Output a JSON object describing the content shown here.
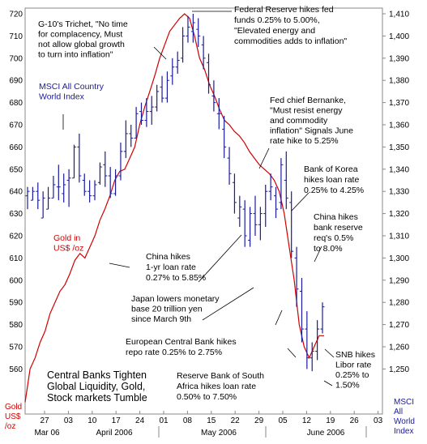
{
  "chart_data": {
    "type": "line",
    "left_axis": {
      "title": [
        "Gold",
        "US$",
        "/oz"
      ],
      "ticks": [
        "720",
        "710",
        "700",
        "690",
        "680",
        "670",
        "660",
        "650",
        "640",
        "630",
        "620",
        "610",
        "600",
        "590",
        "580",
        "570",
        "560"
      ],
      "ylim": [
        548,
        725
      ],
      "color": "#d00000"
    },
    "right_axis": {
      "title": [
        "MSCI",
        "All",
        "World",
        "Index"
      ],
      "ticks": [
        "1,410",
        "1,400",
        "1,390",
        "1,380",
        "1,370",
        "1,360",
        "1,350",
        "1,340",
        "1,330",
        "1,320",
        "1,310",
        "1,300",
        "1,290",
        "1,280",
        "1,270",
        "1,260",
        "1,250"
      ],
      "ylim": [
        1245.5,
        1412
      ],
      "color": "#1a1a9a"
    },
    "x_ticks": [
      "27",
      "03",
      "10",
      "17",
      "24",
      "01",
      "08",
      "15",
      "22",
      "29",
      "05",
      "12",
      "19",
      "26",
      "03"
    ],
    "month_labels": [
      "Mar 06",
      "April 2006",
      "May 2006",
      "June 2006"
    ],
    "series": [
      {
        "name": "Gold in US$ /oz",
        "type": "line",
        "values": [
          545,
          560,
          565,
          572,
          577,
          585,
          590,
          595,
          598,
          603,
          609,
          612,
          610,
          615,
          620,
          627,
          632,
          638,
          645,
          649,
          650,
          655,
          660,
          670,
          678,
          685,
          692,
          700,
          706,
          712,
          715,
          718,
          720,
          718,
          710,
          700,
          695,
          688,
          683,
          677,
          672,
          670,
          667,
          665,
          662,
          658,
          655,
          652,
          650,
          648,
          645,
          640,
          630,
          615,
          600,
          580,
          570,
          565,
          570,
          575,
          575
        ]
      },
      {
        "name": "MSCI All Country World Index",
        "type": "ohlc",
        "bars": [
          [
            1328,
            1332,
            1322,
            1330
          ],
          [
            1326,
            1332,
            1326,
            1330
          ],
          [
            1330,
            1334,
            1322,
            1326
          ],
          [
            1318,
            1330,
            1318,
            1327
          ],
          [
            1322,
            1332,
            1322,
            1327
          ],
          [
            1327,
            1337,
            1327,
            1333
          ],
          [
            1332,
            1342,
            1326,
            1332
          ],
          [
            1329,
            1338,
            1325,
            1333
          ],
          [
            1335,
            1340,
            1323,
            1336
          ],
          [
            1336,
            1351,
            1336,
            1350
          ],
          [
            1350,
            1356,
            1334,
            1337
          ],
          [
            1335,
            1338,
            1328,
            1330
          ],
          [
            1330,
            1335,
            1325,
            1328
          ],
          [
            1328,
            1335,
            1326,
            1333
          ],
          [
            1334,
            1343,
            1333,
            1341
          ],
          [
            1342,
            1348,
            1332,
            1337
          ],
          [
            1337,
            1341,
            1327,
            1329
          ],
          [
            1329,
            1340,
            1328,
            1337
          ],
          [
            1337,
            1352,
            1335,
            1348
          ],
          [
            1348,
            1362,
            1345,
            1356
          ],
          [
            1356,
            1360,
            1350,
            1354
          ],
          [
            1354,
            1368,
            1354,
            1365
          ],
          [
            1366,
            1370,
            1360,
            1362
          ],
          [
            1362,
            1372,
            1359,
            1366
          ],
          [
            1366,
            1373,
            1360,
            1368
          ],
          [
            1368,
            1378,
            1366,
            1375
          ],
          [
            1377,
            1382,
            1370,
            1372
          ],
          [
            1372,
            1384,
            1370,
            1380
          ],
          [
            1382,
            1390,
            1378,
            1386
          ],
          [
            1386,
            1393,
            1383,
            1389
          ],
          [
            1390,
            1404,
            1388,
            1400
          ],
          [
            1400,
            1409,
            1397,
            1404
          ],
          [
            1402,
            1410,
            1397,
            1406
          ],
          [
            1403,
            1408,
            1395,
            1400
          ],
          [
            1396,
            1400,
            1385,
            1390
          ],
          [
            1388,
            1392,
            1374,
            1378
          ],
          [
            1373,
            1380,
            1366,
            1370
          ],
          [
            1365,
            1372,
            1358,
            1365
          ],
          [
            1358,
            1364,
            1345,
            1350
          ],
          [
            1345,
            1350,
            1333,
            1338
          ],
          [
            1334,
            1338,
            1320,
            1325
          ],
          [
            1318,
            1328,
            1314,
            1323
          ],
          [
            1322,
            1326,
            1305,
            1310
          ],
          [
            1308,
            1323,
            1305,
            1320
          ],
          [
            1320,
            1328,
            1310,
            1315
          ],
          [
            1315,
            1323,
            1308,
            1320
          ],
          [
            1320,
            1333,
            1314,
            1330
          ],
          [
            1330,
            1338,
            1326,
            1332
          ],
          [
            1328,
            1332,
            1318,
            1322
          ],
          [
            1325,
            1345,
            1322,
            1342
          ],
          [
            1335,
            1348,
            1322,
            1327
          ],
          [
            1325,
            1330,
            1300,
            1303
          ],
          [
            1300,
            1305,
            1278,
            1286
          ],
          [
            1285,
            1291,
            1262,
            1268
          ],
          [
            1268,
            1276,
            1250,
            1255
          ],
          [
            1255,
            1262,
            1249,
            1258
          ],
          [
            1258,
            1272,
            1254,
            1268
          ],
          [
            1268,
            1280,
            1266,
            1278
          ]
        ]
      }
    ],
    "annotations": [
      {
        "lines": [
          "G-10's Trichet, \"No time",
          "for complacency, Must",
          "not allow global growth",
          "to turn into inflation\""
        ]
      },
      {
        "lines": [
          "Federal Reserve hikes fed",
          "funds 0.25% to 5.00%,",
          "\"Elevated energy and",
          "commodities adds to inflation\""
        ]
      },
      {
        "lines": [
          "MSCI All Country",
          "World Index"
        ]
      },
      {
        "lines": [
          "Fed chief Bernanke,",
          "\"Must resist energy",
          "and commodity",
          "inflation\" Signals June",
          "rate hike to 5.25%"
        ]
      },
      {
        "lines": [
          "Bank of Korea",
          "hikes loan rate",
          "0.25% to 4.25%"
        ]
      },
      {
        "lines": [
          "China hikes",
          "bank reserve",
          "req's 0.5%",
          "to 8.0%"
        ]
      },
      {
        "lines": [
          "Gold in",
          "US$ /oz"
        ]
      },
      {
        "lines": [
          "China hikes",
          "1-yr loan rate",
          "0.27% to 5.85%"
        ]
      },
      {
        "lines": [
          "Japan lowers monetary",
          "base 20 trillion yen",
          "since March 9th"
        ]
      },
      {
        "lines": [
          "European Central Bank hikes",
          "repo rate 0.25% to 2.75%"
        ]
      },
      {
        "lines": [
          "Central Banks Tighten",
          "Global Liquidity, Gold,",
          "Stock markets Tumble"
        ]
      },
      {
        "lines": [
          "Reserve Bank of South",
          "Africa hikes loan rate",
          "0.50% to 7.50%"
        ]
      },
      {
        "lines": [
          "SNB hikes",
          "Libor rate",
          "0.25% to",
          "1.50%"
        ]
      }
    ],
    "grid": false,
    "legend": "none"
  }
}
